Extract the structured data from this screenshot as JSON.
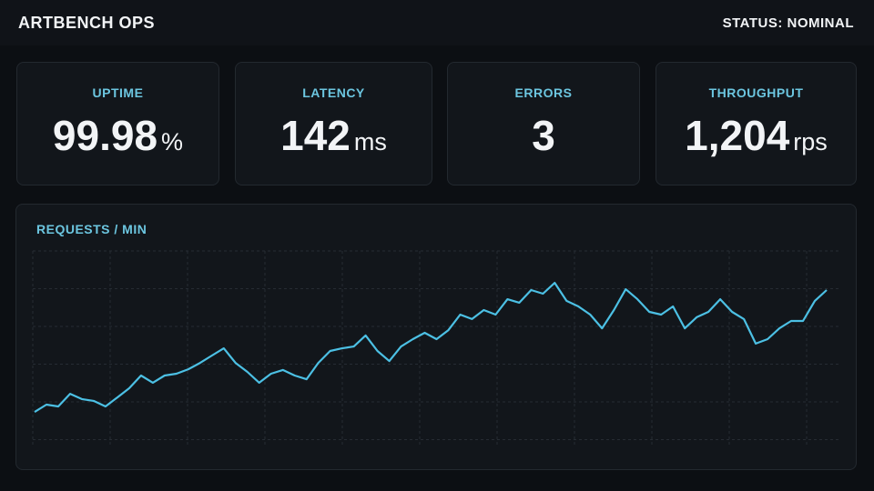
{
  "header": {
    "title": "ARTBENCH OPS",
    "status": "STATUS: NOMINAL"
  },
  "cards": [
    {
      "label": "UPTIME",
      "value": "99.98",
      "unit": "%"
    },
    {
      "label": "LATENCY",
      "value": "142",
      "unit": "ms"
    },
    {
      "label": "ERRORS",
      "value": "3"
    },
    {
      "label": "THROUGHPUT",
      "value": "1,204",
      "unit": "rps"
    }
  ],
  "chart_data": {
    "type": "line",
    "title": "REQUESTS / MIN",
    "values": [
      21.3,
      24.9,
      24.0,
      30.2,
      27.6,
      26.7,
      24.0,
      28.4,
      32.9,
      39.1,
      35.6,
      39.1,
      40.0,
      42.2,
      45.3,
      48.9,
      52.4,
      45.3,
      40.9,
      35.6,
      40.0,
      41.8,
      39.1,
      37.3,
      45.3,
      51.1,
      52.4,
      53.3,
      58.7,
      51.1,
      46.2,
      53.3,
      56.9,
      60.0,
      56.9,
      61.3,
      68.9,
      66.7,
      71.1,
      68.9,
      76.4,
      74.7,
      80.9,
      79.1,
      84.4,
      75.6,
      72.9,
      68.9,
      62.2,
      71.1,
      81.3,
      76.4,
      70.2,
      68.9,
      72.9,
      62.2,
      67.6,
      70.2,
      76.4,
      70.2,
      66.7,
      54.7,
      56.9,
      62.2,
      65.8,
      65.8,
      75.6,
      80.9
    ],
    "color": "#4cc0e4",
    "ylim": [
      0,
      100
    ],
    "grid": true
  }
}
